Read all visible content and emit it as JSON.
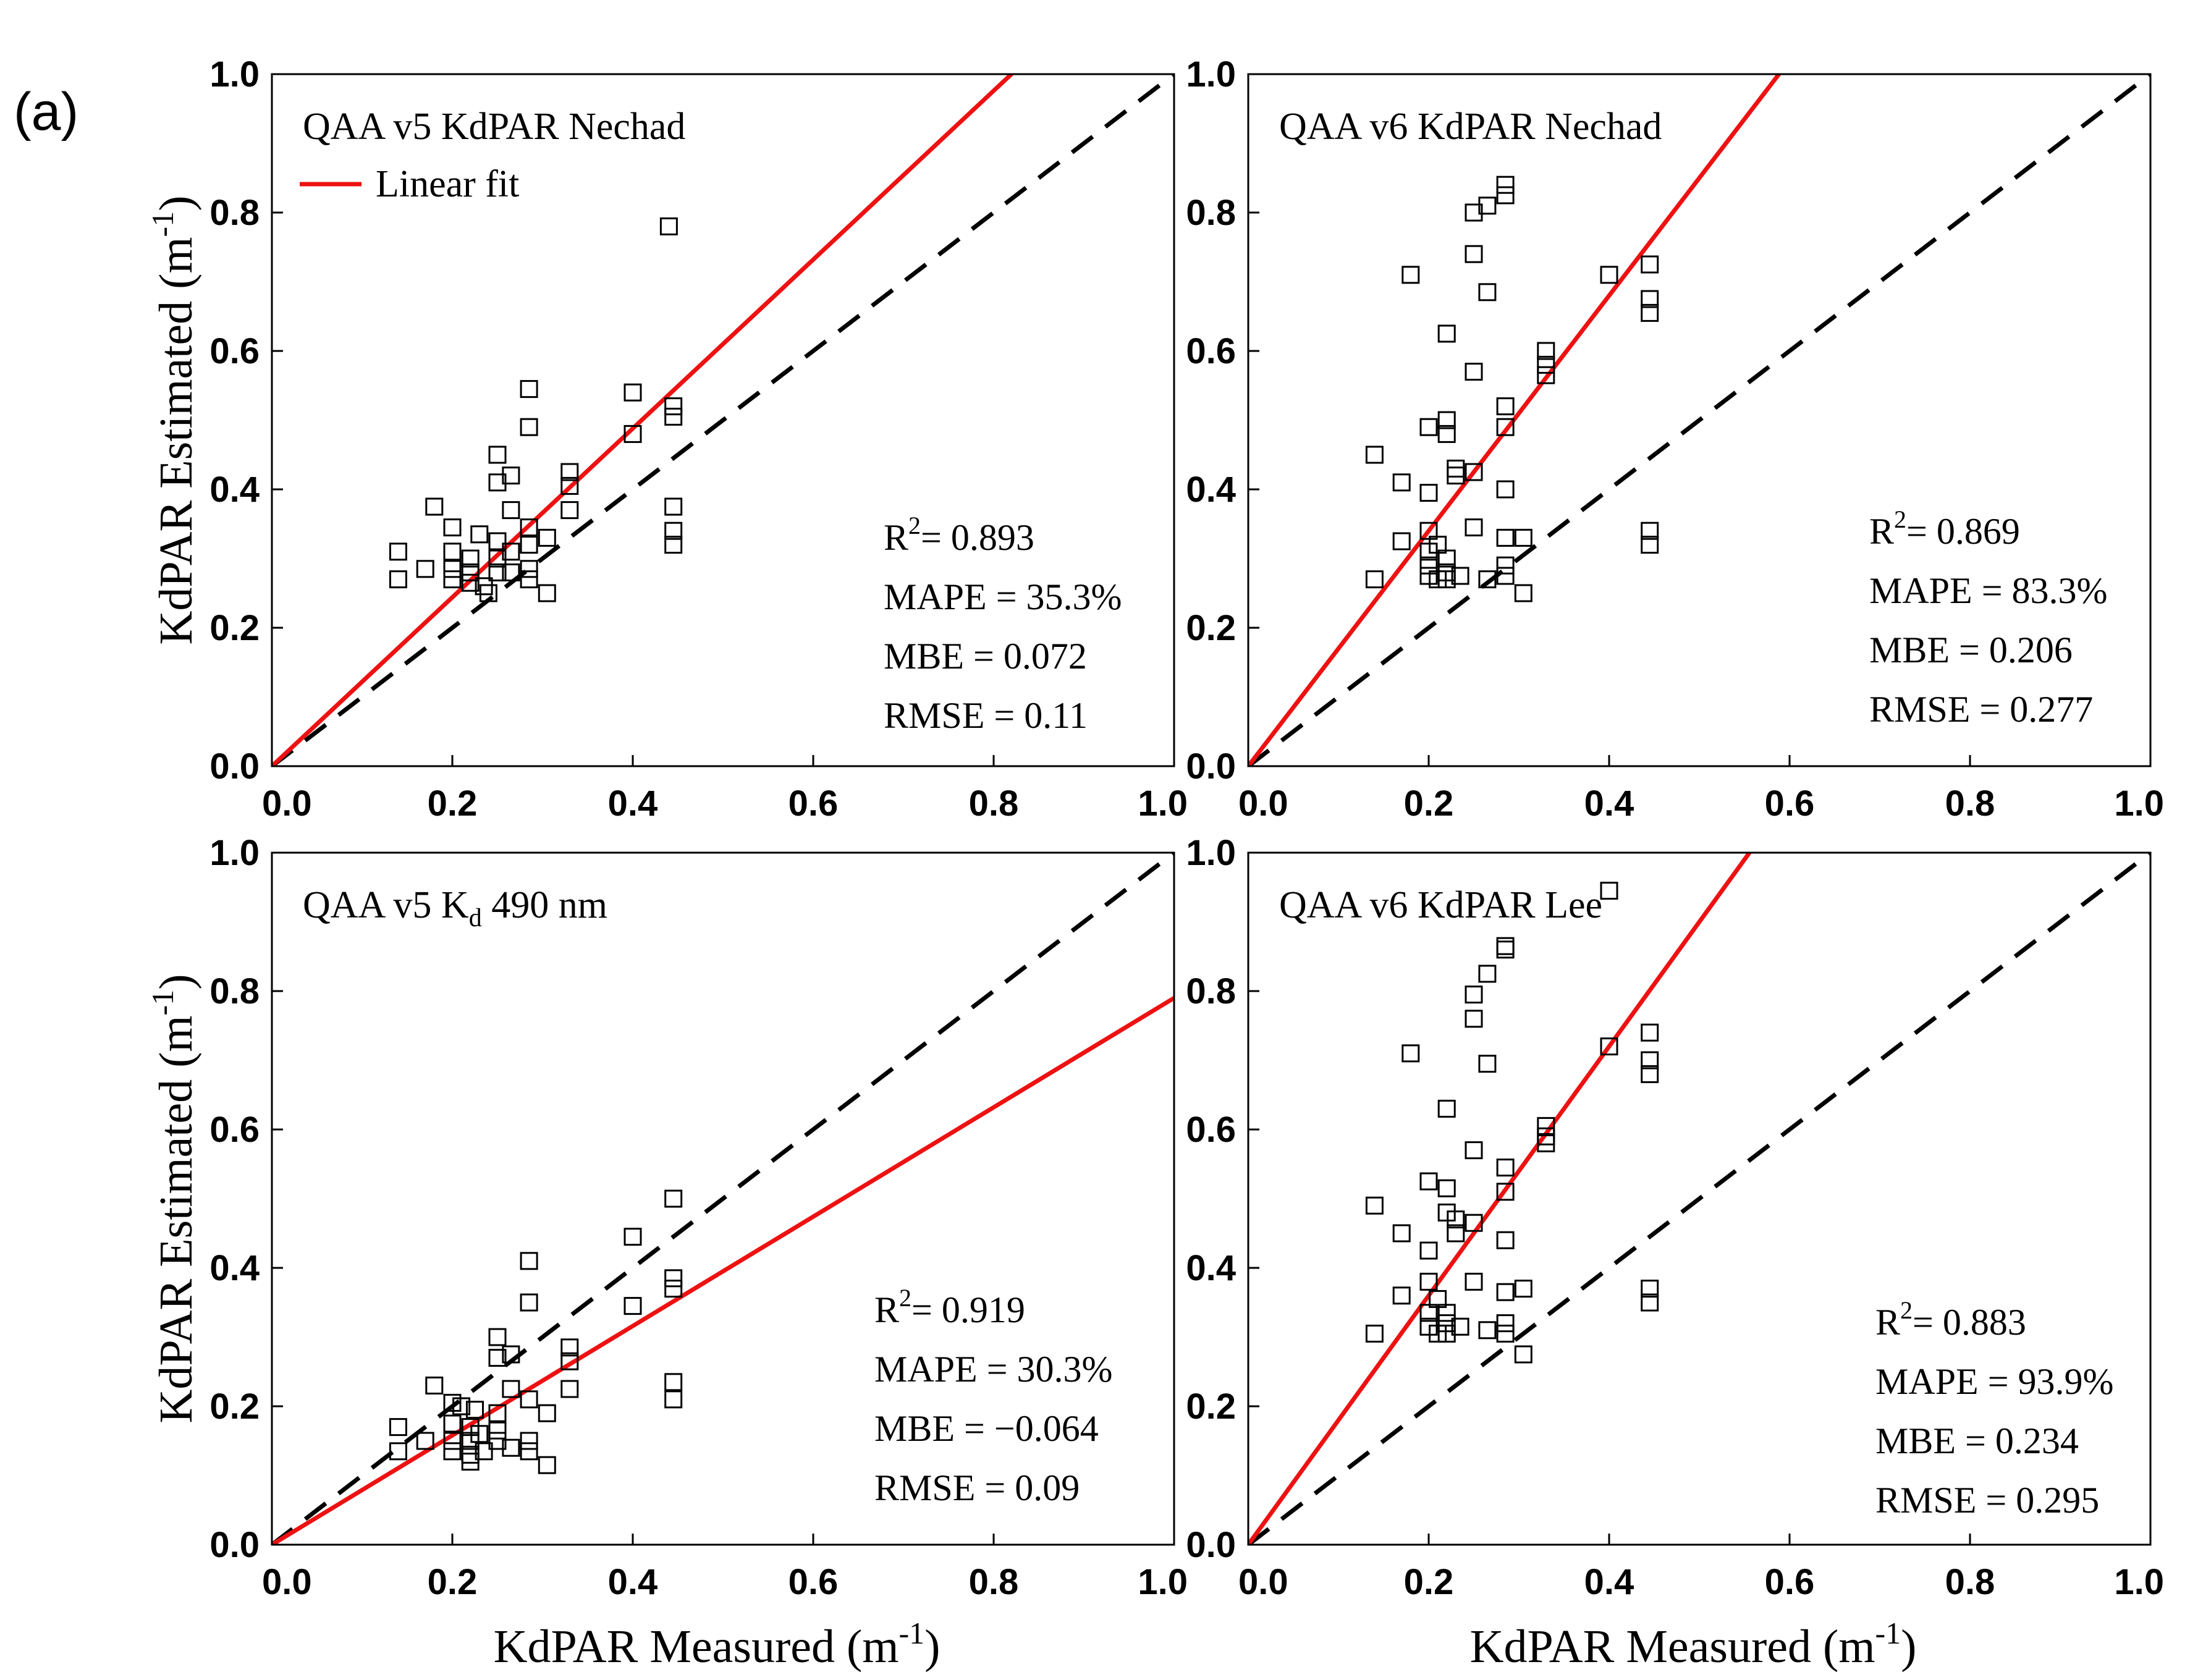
{
  "panel_label": "(a)",
  "legend": {
    "label": "Linear fit",
    "color": "#ee1111"
  },
  "chart_data": [
    {
      "type": "scatter",
      "title": "QAA v5 KdPAR Nechad",
      "xlabel": "",
      "ylabel": "KdPAR Estimated",
      "ylabel_unit": "(m-1)",
      "xlim": [
        0,
        1.0
      ],
      "ylim": [
        0,
        1.0
      ],
      "xticks": [
        "0.0",
        "0.2",
        "0.4",
        "0.6",
        "0.8",
        "1.0"
      ],
      "yticks": [
        "0.0",
        "0.2",
        "0.4",
        "0.6",
        "0.8",
        "1.0"
      ],
      "fit": {
        "slope": 1.22,
        "intercept": 0.0
      },
      "one_to_one": true,
      "stats": [
        {
          "name": "R2",
          "value": "= 0.893"
        },
        {
          "name": "MAPE",
          "value": "= 35.3%"
        },
        {
          "name": "MBE",
          "value": "=  0.072"
        },
        {
          "name": "RMSE",
          "value": "= 0.11"
        }
      ],
      "points": [
        [
          0.14,
          0.31
        ],
        [
          0.14,
          0.27
        ],
        [
          0.17,
          0.285
        ],
        [
          0.18,
          0.375
        ],
        [
          0.2,
          0.345
        ],
        [
          0.2,
          0.31
        ],
        [
          0.2,
          0.285
        ],
        [
          0.2,
          0.27
        ],
        [
          0.22,
          0.3
        ],
        [
          0.22,
          0.28
        ],
        [
          0.22,
          0.265
        ],
        [
          0.23,
          0.335
        ],
        [
          0.235,
          0.26
        ],
        [
          0.24,
          0.25
        ],
        [
          0.25,
          0.45
        ],
        [
          0.25,
          0.41
        ],
        [
          0.25,
          0.325
        ],
        [
          0.25,
          0.3
        ],
        [
          0.25,
          0.28
        ],
        [
          0.265,
          0.42
        ],
        [
          0.265,
          0.37
        ],
        [
          0.265,
          0.31
        ],
        [
          0.265,
          0.28
        ],
        [
          0.285,
          0.545
        ],
        [
          0.285,
          0.49
        ],
        [
          0.285,
          0.345
        ],
        [
          0.285,
          0.32
        ],
        [
          0.285,
          0.285
        ],
        [
          0.285,
          0.27
        ],
        [
          0.305,
          0.33
        ],
        [
          0.305,
          0.25
        ],
        [
          0.33,
          0.425
        ],
        [
          0.33,
          0.405
        ],
        [
          0.33,
          0.37
        ],
        [
          0.4,
          0.54
        ],
        [
          0.4,
          0.48
        ],
        [
          0.44,
          0.78
        ],
        [
          0.445,
          0.52
        ],
        [
          0.445,
          0.505
        ],
        [
          0.445,
          0.375
        ],
        [
          0.445,
          0.34
        ],
        [
          0.445,
          0.32
        ]
      ]
    },
    {
      "type": "scatter",
      "title": "QAA v6 KdPAR Nechad",
      "xlabel": "",
      "ylabel": "",
      "xlim": [
        0,
        1.0
      ],
      "ylim": [
        0,
        1.0
      ],
      "xticks": [
        "0.0",
        "0.2",
        "0.4",
        "0.6",
        "0.8",
        "1.0"
      ],
      "yticks": [
        "0.0",
        "0.2",
        "0.4",
        "0.6",
        "0.8",
        "1.0"
      ],
      "fit": {
        "slope": 1.7,
        "intercept": 0.0
      },
      "one_to_one": true,
      "stats": [
        {
          "name": "R2",
          "value": "= 0.869"
        },
        {
          "name": "MAPE",
          "value": "= 83.3%"
        },
        {
          "name": "MBE",
          "value": "= 0.206"
        },
        {
          "name": "RMSE",
          "value": "= 0.277"
        }
      ],
      "points": [
        [
          0.14,
          0.45
        ],
        [
          0.14,
          0.27
        ],
        [
          0.17,
          0.41
        ],
        [
          0.17,
          0.325
        ],
        [
          0.18,
          0.71
        ],
        [
          0.2,
          0.49
        ],
        [
          0.2,
          0.395
        ],
        [
          0.2,
          0.34
        ],
        [
          0.2,
          0.31
        ],
        [
          0.2,
          0.29
        ],
        [
          0.2,
          0.275
        ],
        [
          0.21,
          0.32
        ],
        [
          0.21,
          0.27
        ],
        [
          0.22,
          0.625
        ],
        [
          0.22,
          0.5
        ],
        [
          0.22,
          0.48
        ],
        [
          0.22,
          0.3
        ],
        [
          0.22,
          0.28
        ],
        [
          0.22,
          0.27
        ],
        [
          0.23,
          0.43
        ],
        [
          0.23,
          0.42
        ],
        [
          0.235,
          0.275
        ],
        [
          0.25,
          0.8
        ],
        [
          0.25,
          0.74
        ],
        [
          0.25,
          0.57
        ],
        [
          0.25,
          0.425
        ],
        [
          0.25,
          0.345
        ],
        [
          0.265,
          0.81
        ],
        [
          0.265,
          0.685
        ],
        [
          0.265,
          0.27
        ],
        [
          0.285,
          0.84
        ],
        [
          0.285,
          0.825
        ],
        [
          0.285,
          0.52
        ],
        [
          0.285,
          0.49
        ],
        [
          0.285,
          0.4
        ],
        [
          0.285,
          0.33
        ],
        [
          0.285,
          0.29
        ],
        [
          0.285,
          0.275
        ],
        [
          0.305,
          0.33
        ],
        [
          0.305,
          0.25
        ],
        [
          0.33,
          0.6
        ],
        [
          0.33,
          0.58
        ],
        [
          0.33,
          0.565
        ],
        [
          0.4,
          0.71
        ],
        [
          0.445,
          0.725
        ],
        [
          0.445,
          0.675
        ],
        [
          0.445,
          0.655
        ],
        [
          0.445,
          0.34
        ],
        [
          0.445,
          0.32
        ]
      ]
    },
    {
      "type": "scatter",
      "title": "QAA v5 K",
      "title_sub": "d",
      "title_suffix": " 490 nm",
      "xlabel": "KdPAR Measured",
      "xlabel_unit": "(m-1)",
      "ylabel": "KdPAR Estimated",
      "ylabel_unit": "(m-1)",
      "xlim": [
        0,
        1.0
      ],
      "ylim": [
        0,
        1.0
      ],
      "xticks": [
        "0.0",
        "0.2",
        "0.4",
        "0.6",
        "0.8",
        "1.0"
      ],
      "yticks": [
        "0.0",
        "0.2",
        "0.4",
        "0.6",
        "0.8",
        "1.0"
      ],
      "fit": {
        "slope": 0.79,
        "intercept": 0.0
      },
      "one_to_one": true,
      "stats": [
        {
          "name": "R2",
          "value": "= 0.919"
        },
        {
          "name": "MAPE",
          "value": "= 30.3%"
        },
        {
          "name": "MBE",
          "value": "= −0.064"
        },
        {
          "name": "RMSE",
          "value": "= 0.09"
        }
      ],
      "points": [
        [
          0.14,
          0.17
        ],
        [
          0.14,
          0.135
        ],
        [
          0.17,
          0.15
        ],
        [
          0.18,
          0.23
        ],
        [
          0.2,
          0.205
        ],
        [
          0.2,
          0.175
        ],
        [
          0.2,
          0.15
        ],
        [
          0.2,
          0.135
        ],
        [
          0.21,
          0.2
        ],
        [
          0.22,
          0.17
        ],
        [
          0.22,
          0.15
        ],
        [
          0.22,
          0.13
        ],
        [
          0.22,
          0.12
        ],
        [
          0.225,
          0.195
        ],
        [
          0.23,
          0.16
        ],
        [
          0.235,
          0.135
        ],
        [
          0.25,
          0.3
        ],
        [
          0.25,
          0.27
        ],
        [
          0.25,
          0.19
        ],
        [
          0.25,
          0.165
        ],
        [
          0.25,
          0.15
        ],
        [
          0.265,
          0.275
        ],
        [
          0.265,
          0.225
        ],
        [
          0.265,
          0.14
        ],
        [
          0.285,
          0.41
        ],
        [
          0.285,
          0.35
        ],
        [
          0.285,
          0.21
        ],
        [
          0.285,
          0.15
        ],
        [
          0.285,
          0.135
        ],
        [
          0.305,
          0.19
        ],
        [
          0.305,
          0.115
        ],
        [
          0.33,
          0.285
        ],
        [
          0.33,
          0.265
        ],
        [
          0.33,
          0.225
        ],
        [
          0.4,
          0.445
        ],
        [
          0.4,
          0.345
        ],
        [
          0.445,
          0.5
        ],
        [
          0.445,
          0.385
        ],
        [
          0.445,
          0.37
        ],
        [
          0.445,
          0.235
        ],
        [
          0.445,
          0.21
        ]
      ]
    },
    {
      "type": "scatter",
      "title": "QAA v6 KdPAR Lee",
      "xlabel": "KdPAR Measured",
      "xlabel_unit": "(m-1)",
      "ylabel": "",
      "xlim": [
        0,
        1.0
      ],
      "ylim": [
        0,
        1.0
      ],
      "xticks": [
        "0.0",
        "0.2",
        "0.4",
        "0.6",
        "0.8",
        "1.0"
      ],
      "yticks": [
        "0.0",
        "0.2",
        "0.4",
        "0.6",
        "0.8",
        "1.0"
      ],
      "fit": {
        "slope": 1.8,
        "intercept": 0.0
      },
      "one_to_one": true,
      "stats": [
        {
          "name": "R2",
          "value": "= 0.883"
        },
        {
          "name": "MAPE",
          "value": "= 93.9%"
        },
        {
          "name": "MBE",
          "value": "= 0.234"
        },
        {
          "name": "RMSE",
          "value": "= 0.295"
        }
      ],
      "points": [
        [
          0.14,
          0.49
        ],
        [
          0.14,
          0.305
        ],
        [
          0.17,
          0.45
        ],
        [
          0.17,
          0.36
        ],
        [
          0.18,
          0.71
        ],
        [
          0.2,
          0.525
        ],
        [
          0.2,
          0.425
        ],
        [
          0.2,
          0.38
        ],
        [
          0.2,
          0.335
        ],
        [
          0.2,
          0.315
        ],
        [
          0.21,
          0.355
        ],
        [
          0.21,
          0.305
        ],
        [
          0.22,
          0.63
        ],
        [
          0.22,
          0.515
        ],
        [
          0.22,
          0.48
        ],
        [
          0.22,
          0.335
        ],
        [
          0.22,
          0.32
        ],
        [
          0.22,
          0.305
        ],
        [
          0.23,
          0.47
        ],
        [
          0.23,
          0.45
        ],
        [
          0.235,
          0.315
        ],
        [
          0.25,
          0.795
        ],
        [
          0.25,
          0.76
        ],
        [
          0.25,
          0.57
        ],
        [
          0.25,
          0.465
        ],
        [
          0.25,
          0.38
        ],
        [
          0.265,
          0.825
        ],
        [
          0.265,
          0.695
        ],
        [
          0.265,
          0.31
        ],
        [
          0.285,
          0.865
        ],
        [
          0.285,
          0.86
        ],
        [
          0.285,
          0.545
        ],
        [
          0.285,
          0.51
        ],
        [
          0.285,
          0.44
        ],
        [
          0.285,
          0.365
        ],
        [
          0.285,
          0.32
        ],
        [
          0.285,
          0.305
        ],
        [
          0.305,
          0.37
        ],
        [
          0.305,
          0.275
        ],
        [
          0.33,
          0.605
        ],
        [
          0.33,
          0.59
        ],
        [
          0.33,
          0.58
        ],
        [
          0.4,
          0.72
        ],
        [
          0.4,
          0.945
        ],
        [
          0.445,
          0.74
        ],
        [
          0.445,
          0.7
        ],
        [
          0.445,
          0.68
        ],
        [
          0.445,
          0.37
        ],
        [
          0.445,
          0.35
        ]
      ]
    }
  ]
}
